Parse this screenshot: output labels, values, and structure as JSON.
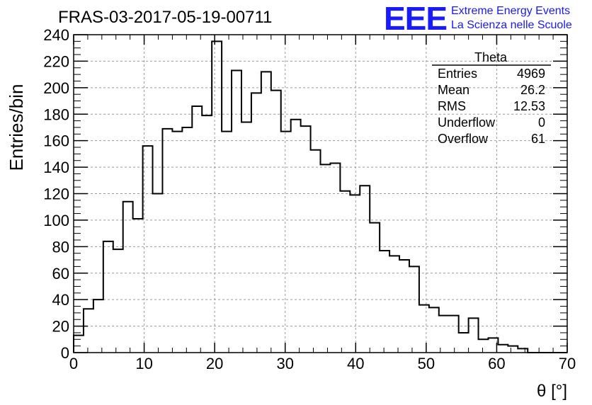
{
  "header": {
    "title": "FRAS-03-2017-05-19-00711",
    "logo_text": "EEE",
    "logo_line1": "Extreme Energy Events",
    "logo_line2": "La Scienza nelle Scuole",
    "logo_color": "#1a1aff"
  },
  "stats": {
    "name": "Theta",
    "rows": [
      {
        "label": "Entries",
        "value": "4969"
      },
      {
        "label": "Mean",
        "value": "26.2"
      },
      {
        "label": "RMS",
        "value": "12.53"
      },
      {
        "label": "Underflow",
        "value": "0"
      },
      {
        "label": "Overflow",
        "value": "61"
      }
    ]
  },
  "chart_data": {
    "type": "bar",
    "style": "step-histogram",
    "xlabel": "θ [°]",
    "ylabel": "Entries/bin",
    "xlim": [
      0,
      70
    ],
    "ylim": [
      0,
      240
    ],
    "bin_width": 1.4,
    "x_ticks": [
      "0",
      "10",
      "20",
      "30",
      "40",
      "50",
      "60",
      "70"
    ],
    "y_ticks": [
      "0",
      "20",
      "40",
      "60",
      "80",
      "100",
      "120",
      "140",
      "160",
      "180",
      "200",
      "220",
      "240"
    ],
    "grid": true,
    "values": [
      13,
      33,
      40,
      84,
      78,
      114,
      101,
      156,
      120,
      169,
      167,
      170,
      186,
      179,
      235,
      167,
      213,
      174,
      196,
      212,
      198,
      167,
      176,
      171,
      153,
      142,
      143,
      122,
      119,
      126,
      98,
      77,
      73,
      70,
      65,
      36,
      34,
      28,
      28,
      15,
      26,
      10,
      11,
      6,
      5,
      3,
      0,
      0,
      0,
      0
    ]
  }
}
